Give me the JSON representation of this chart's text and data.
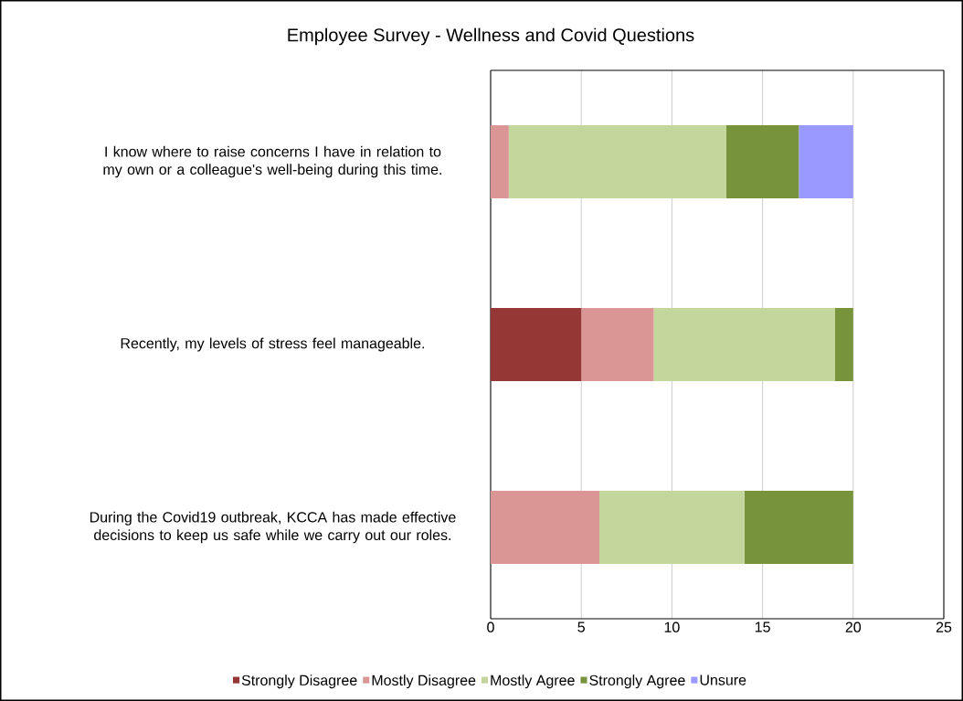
{
  "chart_data": {
    "type": "bar",
    "orientation": "horizontal",
    "stacked": true,
    "title": "Employee Survey - Wellness and Covid Questions",
    "categories": [
      "I know where to raise concerns I have in relation to my own or a colleague's well-being during this time.",
      "Recently, my levels of stress feel manageable.",
      "During the Covid19 outbreak, KCCA has made effective decisions to keep us safe while we carry out our roles."
    ],
    "series": [
      {
        "name": "Strongly Disagree",
        "color": "#953735",
        "values": [
          0,
          5,
          0
        ]
      },
      {
        "name": "Mostly Disagree",
        "color": "#d99694",
        "values": [
          1,
          4,
          6
        ]
      },
      {
        "name": "Mostly Agree",
        "color": "#c3d69b",
        "values": [
          12,
          10,
          8
        ]
      },
      {
        "name": "Strongly Agree",
        "color": "#77933c",
        "values": [
          4,
          1,
          6
        ]
      },
      {
        "name": "Unsure",
        "color": "#9999ff",
        "values": [
          3,
          0,
          0
        ]
      }
    ],
    "xlim": [
      0,
      25
    ],
    "xticks": [
      0,
      5,
      10,
      15,
      20,
      25
    ],
    "grid": "x",
    "legend": "bottom"
  }
}
